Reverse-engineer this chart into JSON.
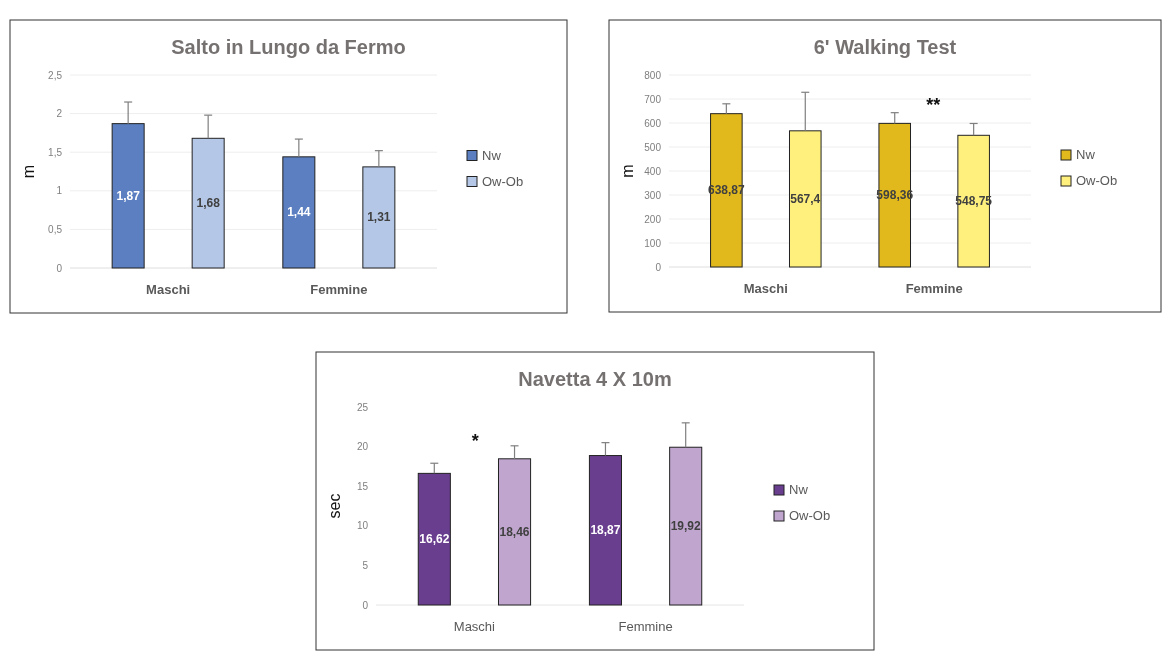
{
  "chart_data": [
    {
      "type": "bar",
      "title": "Salto in Lungo da Fermo",
      "ylabel": "m",
      "categories": [
        "Maschi",
        "Femmine"
      ],
      "series": [
        {
          "name": "Nw",
          "color": "#5b7fc0",
          "values": [
            1.87,
            1.44
          ],
          "value_labels": [
            "1,87",
            "1,44"
          ],
          "errors": [
            [
              1.87,
              2.15
            ],
            [
              1.44,
              1.67
            ]
          ]
        },
        {
          "name": "Ow-Ob",
          "color": "#b4c7e7",
          "values": [
            1.68,
            1.31
          ],
          "value_labels": [
            "1,68",
            "1,31"
          ],
          "errors": [
            [
              1.68,
              1.98
            ],
            [
              1.31,
              1.52
            ]
          ]
        }
      ],
      "ylim": [
        0,
        2.5
      ],
      "yticks": [
        0,
        {
          "value": 0.5,
          "label": "0,5"
        },
        1,
        {
          "value": 1.5,
          "label": "1,5"
        },
        2,
        {
          "value": 2.5,
          "label": "2,5"
        }
      ],
      "grid": "y",
      "legend": "right"
    },
    {
      "type": "bar",
      "title": "6' Walking Test",
      "ylabel": "m",
      "categories": [
        "Maschi",
        "Femmine"
      ],
      "series": [
        {
          "name": "Nw",
          "color": "#e2b91d",
          "values": [
            638.87,
            598.36
          ],
          "value_labels": [
            "638,87",
            "598,36"
          ],
          "errors": [
            [
              638.87,
              680
            ],
            [
              598.36,
              643
            ]
          ]
        },
        {
          "name": "Ow-Ob",
          "color": "#fff07e",
          "values": [
            567.4,
            548.75
          ],
          "value_labels": [
            "567,4",
            "548,75"
          ],
          "errors": [
            [
              567.4,
              728
            ],
            [
              548.75,
              598
            ]
          ]
        }
      ],
      "ylim": [
        0,
        800
      ],
      "yticks": [
        0,
        100,
        200,
        300,
        400,
        500,
        600,
        700,
        800
      ],
      "grid": "y",
      "legend": "right",
      "annotations": [
        "**"
      ]
    },
    {
      "type": "bar",
      "title": "Navetta 4 X 10m",
      "ylabel": "sec",
      "categories": [
        "Maschi",
        "Femmine"
      ],
      "series": [
        {
          "name": "Nw",
          "color": "#6a3e8f",
          "values": [
            16.62,
            18.87
          ],
          "value_labels": [
            "16,62",
            "18,87"
          ],
          "errors": [
            [
              16.62,
              17.9
            ],
            [
              18.87,
              20.5
            ]
          ]
        },
        {
          "name": "Ow-Ob",
          "color": "#c0a6cf",
          "values": [
            18.46,
            19.92
          ],
          "value_labels": [
            "18,46",
            "19,92"
          ],
          "errors": [
            [
              18.46,
              20.1
            ],
            [
              19.92,
              23
            ]
          ]
        }
      ],
      "ylim": [
        0,
        25
      ],
      "yticks": [
        0,
        5,
        10,
        15,
        20,
        25
      ],
      "grid": false,
      "legend": "right",
      "annotations": [
        "*"
      ]
    }
  ]
}
